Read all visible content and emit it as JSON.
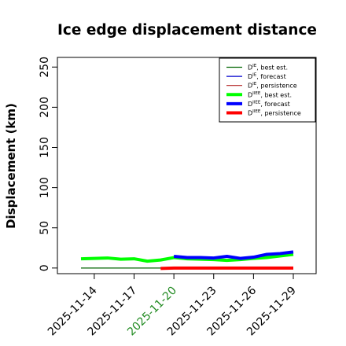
{
  "chart_data": {
    "type": "line",
    "title": "Ice edge displacement distance",
    "xlabel": "",
    "ylabel": "Displacement (km)",
    "x": [
      "2025-11-13",
      "2025-11-14",
      "2025-11-15",
      "2025-11-16",
      "2025-11-17",
      "2025-11-18",
      "2025-11-19",
      "2025-11-20",
      "2025-11-21",
      "2025-11-22",
      "2025-11-23",
      "2025-11-24",
      "2025-11-25",
      "2025-11-26",
      "2025-11-27",
      "2025-11-28",
      "2025-11-29"
    ],
    "xtick_labels": [
      "2025-11-14",
      "2025-11-17",
      "2025-11-20",
      "2025-11-23",
      "2025-11-26",
      "2025-11-29"
    ],
    "highlight_tick": "2025-11-20",
    "highlight_color": "#228b22",
    "ylim": [
      -7,
      262
    ],
    "yticks": [
      0,
      50,
      100,
      150,
      200,
      250
    ],
    "grid": false,
    "legend_position": "top-right",
    "series": [
      {
        "name": "D^IE, best est.",
        "label_base": "D",
        "label_sup": "IE",
        "label_rest": ", best est.",
        "color": "#006400",
        "width": 1.2,
        "values": [
          0,
          0,
          0,
          0,
          0,
          0,
          0,
          0,
          0,
          0,
          0,
          0,
          0,
          0,
          0,
          0,
          0
        ]
      },
      {
        "name": "D^IE, forecast",
        "label_base": "D",
        "label_sup": "IE",
        "label_rest": ", forecast",
        "color": "#0000cd",
        "width": 1.2,
        "values": [
          null,
          null,
          null,
          null,
          null,
          null,
          null,
          0,
          0,
          0,
          0,
          0,
          0,
          0,
          0,
          0,
          0
        ]
      },
      {
        "name": "D^IE, persistence",
        "label_base": "D",
        "label_sup": "IE",
        "label_rest": ", persistence",
        "color": "#b22222",
        "width": 1.2,
        "values": [
          null,
          null,
          null,
          null,
          null,
          null,
          null,
          0,
          0,
          0,
          0,
          0,
          0,
          0,
          0,
          0,
          0
        ]
      },
      {
        "name": "D^IIEE, best est.",
        "label_base": "D",
        "label_sup": "IIEE",
        "label_rest": ", best est.",
        "color": "#00ff00",
        "width": 4,
        "values": [
          11.5,
          12,
          12.5,
          11,
          11.5,
          8.5,
          10,
          13,
          11.5,
          11,
          10.5,
          9.5,
          10.5,
          12,
          13,
          15,
          17
        ]
      },
      {
        "name": "D^IIEE, forecast",
        "label_base": "D",
        "label_sup": "IIEE",
        "label_rest": ", forecast",
        "color": "#0000ff",
        "width": 4,
        "values": [
          null,
          null,
          null,
          null,
          null,
          null,
          null,
          14.5,
          13,
          13,
          12.5,
          14.5,
          12,
          13.5,
          17,
          18,
          20
        ]
      },
      {
        "name": "D^IIEE, persistence",
        "label_base": "D",
        "label_sup": "IIEE",
        "label_rest": ", persistence",
        "color": "#ff0000",
        "width": 4,
        "values": [
          null,
          null,
          null,
          null,
          null,
          null,
          -0.5,
          0,
          0,
          0,
          0,
          0,
          0,
          0,
          0,
          0,
          0
        ]
      }
    ]
  }
}
